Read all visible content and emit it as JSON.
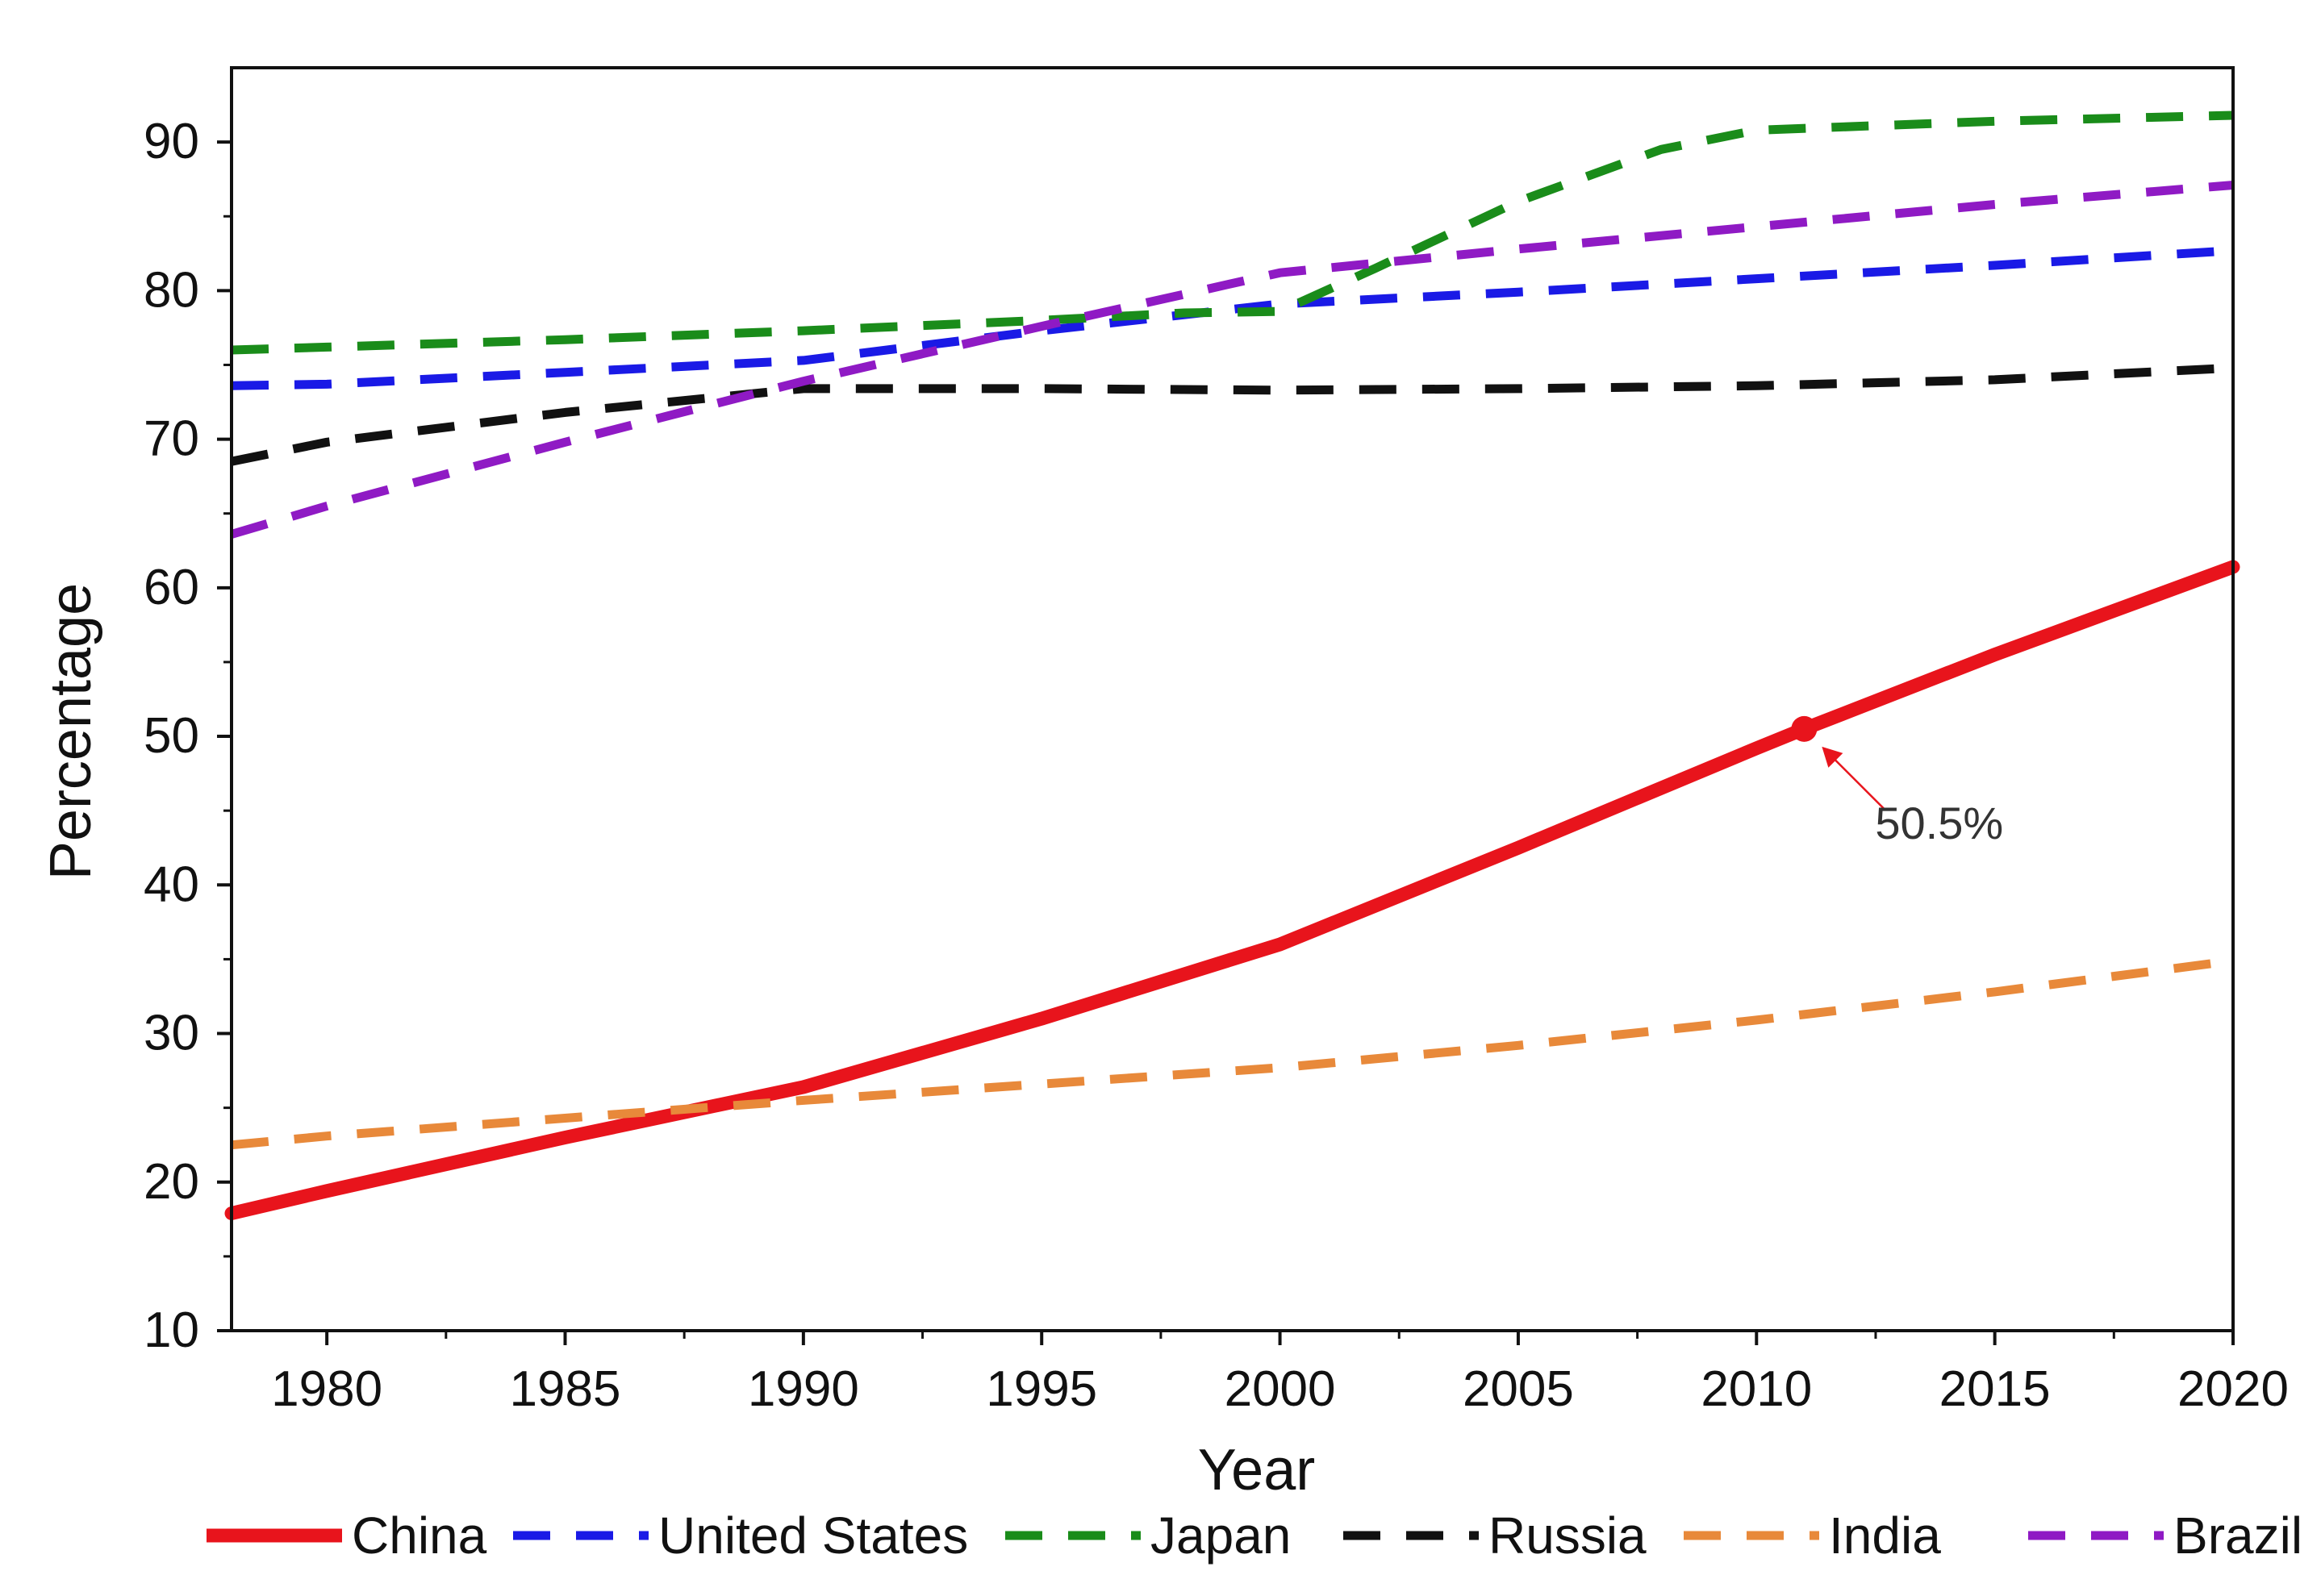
{
  "chart_data": {
    "type": "line",
    "title": "",
    "xlabel": "Year",
    "ylabel": "Percentage",
    "xlim": [
      1978,
      2020
    ],
    "ylim": [
      10,
      95
    ],
    "xticks": [
      1980,
      1985,
      1990,
      1995,
      2000,
      2005,
      2010,
      2015,
      2020
    ],
    "yticks": [
      10,
      20,
      30,
      40,
      50,
      60,
      70,
      80,
      90
    ],
    "grid": false,
    "legend_position": "bottom",
    "series": [
      {
        "name": "China",
        "color": "#e8141c",
        "style": "solid",
        "x": [
          1978,
          1980,
          1985,
          1990,
          1995,
          2000,
          2005,
          2010,
          2011,
          2015,
          2020
        ],
        "values": [
          17.9,
          19.4,
          23.0,
          26.4,
          31.0,
          36.0,
          42.5,
          49.2,
          50.5,
          55.5,
          61.4
        ]
      },
      {
        "name": "United States",
        "color": "#1a1ae6",
        "style": "dashed",
        "x": [
          1978,
          1980,
          1985,
          1990,
          1995,
          2000,
          2005,
          2010,
          2015,
          2020
        ],
        "values": [
          73.6,
          73.7,
          74.5,
          75.3,
          77.3,
          79.1,
          79.9,
          80.8,
          81.7,
          82.7
        ]
      },
      {
        "name": "Japan",
        "color": "#1a8c1a",
        "style": "dashed",
        "x": [
          1978,
          1980,
          1985,
          1990,
          1995,
          1998,
          2000,
          2002,
          2005,
          2008,
          2010,
          2015,
          2020
        ],
        "values": [
          76.0,
          76.2,
          76.7,
          77.3,
          78.0,
          78.5,
          78.6,
          81.5,
          86.0,
          89.5,
          90.8,
          91.4,
          91.8
        ]
      },
      {
        "name": "Russia",
        "color": "#111111",
        "style": "dashed",
        "x": [
          1978,
          1980,
          1985,
          1990,
          1995,
          2000,
          2005,
          2010,
          2015,
          2020
        ],
        "values": [
          68.5,
          69.8,
          71.8,
          73.4,
          73.4,
          73.3,
          73.4,
          73.6,
          74.0,
          74.8
        ]
      },
      {
        "name": "India",
        "color": "#e8893a",
        "style": "dashed",
        "x": [
          1978,
          1980,
          1985,
          1990,
          1995,
          2000,
          2005,
          2010,
          2015,
          2020
        ],
        "values": [
          22.5,
          23.1,
          24.3,
          25.5,
          26.6,
          27.7,
          29.2,
          30.9,
          32.8,
          34.9
        ]
      },
      {
        "name": "Brazil",
        "color": "#8f1ac4",
        "style": "dashed",
        "x": [
          1978,
          1980,
          1985,
          1990,
          1995,
          2000,
          2005,
          2010,
          2015,
          2020
        ],
        "values": [
          63.6,
          65.5,
          69.8,
          73.9,
          77.6,
          81.2,
          82.8,
          84.3,
          85.8,
          87.1
        ]
      }
    ],
    "annotations": [
      {
        "series": "China",
        "x": 2011,
        "y": 50.5,
        "text": "50.5%"
      }
    ]
  }
}
